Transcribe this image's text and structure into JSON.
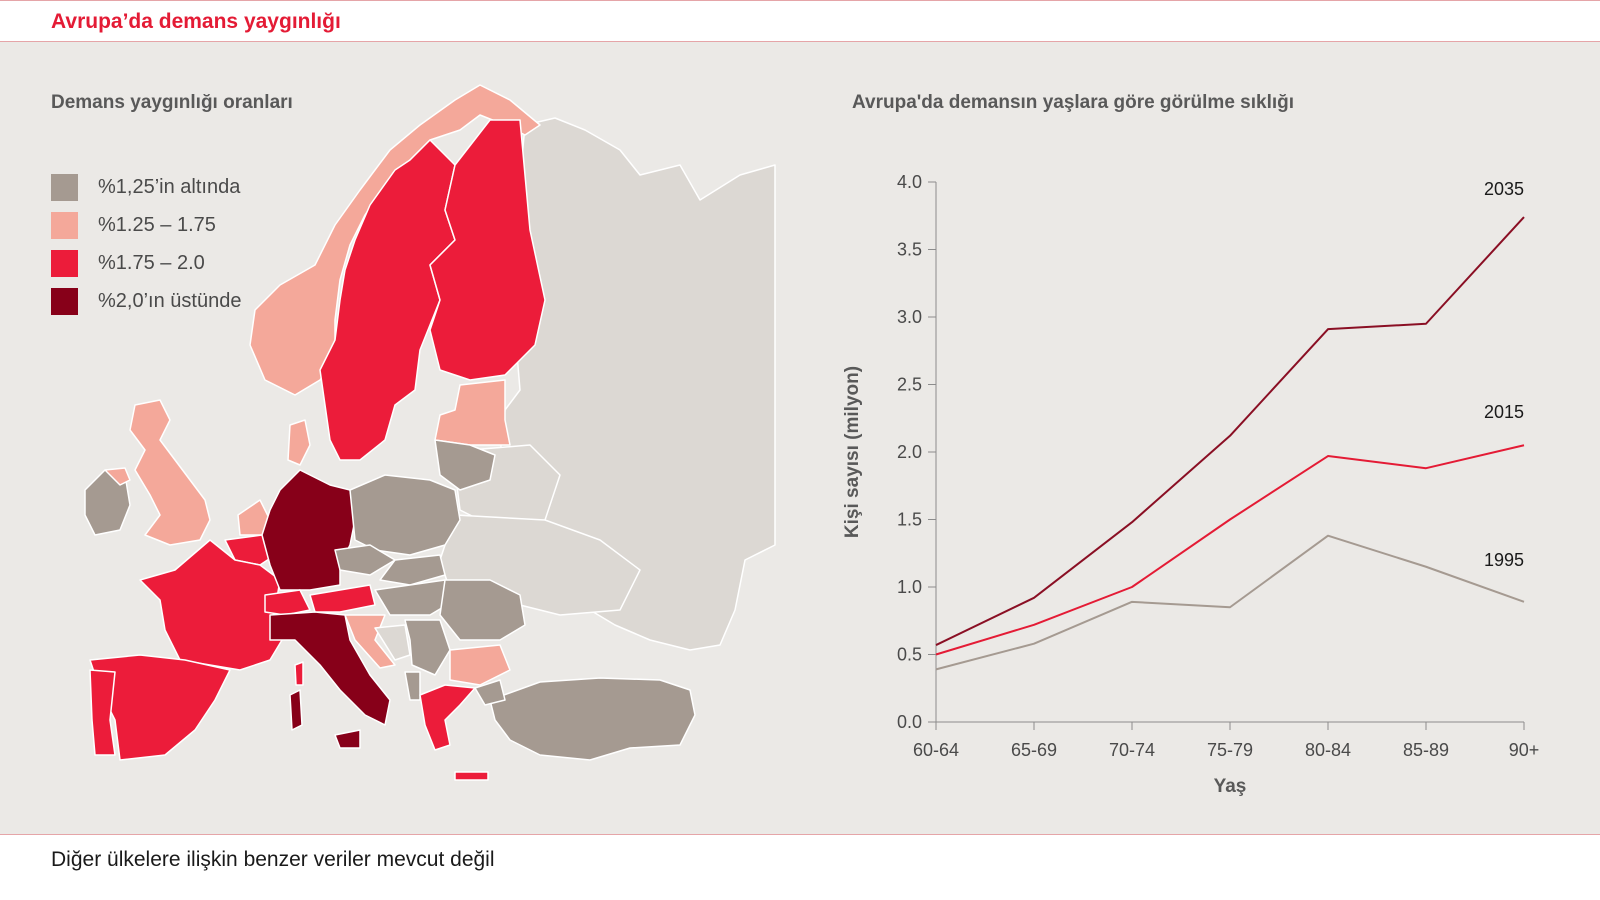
{
  "header": {
    "title": "Avrupa’da demans yaygınlığı"
  },
  "map": {
    "title": "Demans yaygınlığı oranları",
    "legend": [
      {
        "label": "%1,25’in altında",
        "color": "#a59a91"
      },
      {
        "label": "%1.25 – 1.75",
        "color": "#f4a89a"
      },
      {
        "label": "%1.75 – 2.0",
        "color": "#ec1c3a"
      },
      {
        "label": "%2,0’ın üstünde",
        "color": "#870019"
      }
    ],
    "no_data_color": "#dcd8d3"
  },
  "footer": {
    "note": "Diğer ülkelere ilişkin benzer veriler mevcut değil"
  },
  "chart_data": {
    "type": "line",
    "title": "Avrupa'da demansın yaşlara göre görülme sıklığı",
    "xlabel": "Yaş",
    "ylabel": "Kişi sayısı (milyon)",
    "categories": [
      "60-64",
      "65-69",
      "70-74",
      "75-79",
      "80-84",
      "85-89",
      "90+"
    ],
    "ylim": [
      0,
      4.0
    ],
    "yticks": [
      "0.0",
      "0.5",
      "1.0",
      "1.5",
      "2.0",
      "2.5",
      "3.0",
      "3.5",
      "4.0"
    ],
    "grid": false,
    "series": [
      {
        "name": "2035",
        "color": "#8a0f24",
        "values": [
          0.57,
          0.92,
          1.48,
          2.12,
          2.91,
          2.95,
          3.74
        ]
      },
      {
        "name": "2015",
        "color": "#e41b35",
        "values": [
          0.5,
          0.72,
          1.0,
          1.5,
          1.97,
          1.88,
          2.05
        ]
      },
      {
        "name": "1995",
        "color": "#a59a91",
        "values": [
          0.39,
          0.58,
          0.89,
          0.85,
          1.38,
          1.15,
          0.89
        ]
      }
    ]
  }
}
